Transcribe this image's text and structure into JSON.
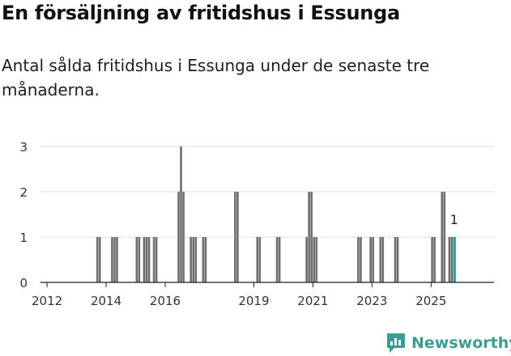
{
  "title": "En försäljning av fritidshus i Essunga",
  "subtitle": "Antal sålda fritidshus i Essunga under de senaste tre månaderna.",
  "brand": {
    "name": "Newsworthy",
    "color": "#3a9e93"
  },
  "colors": {
    "bar": "#6f6e73",
    "highlight": "#27a09a",
    "axis": "#222222",
    "grid": "#dcdcdc"
  },
  "chart_data": {
    "type": "bar",
    "frequency": "monthly",
    "ylabel": "",
    "xlabel": "",
    "ylim": [
      0,
      3
    ],
    "y_ticks": [
      0,
      1,
      2,
      3
    ],
    "x_ticks": [
      "2012",
      "2014",
      "2016",
      "2019",
      "2021",
      "2023",
      "2025"
    ],
    "series": [
      {
        "values": [
          {
            "x": "2013-09",
            "y": 1
          },
          {
            "x": "2013-10",
            "y": 1
          },
          {
            "x": "2014-03",
            "y": 1
          },
          {
            "x": "2014-04",
            "y": 1
          },
          {
            "x": "2014-05",
            "y": 1
          },
          {
            "x": "2015-01",
            "y": 1
          },
          {
            "x": "2015-02",
            "y": 1
          },
          {
            "x": "2015-04",
            "y": 1
          },
          {
            "x": "2015-05",
            "y": 1
          },
          {
            "x": "2015-06",
            "y": 1
          },
          {
            "x": "2015-08",
            "y": 1
          },
          {
            "x": "2015-09",
            "y": 1
          },
          {
            "x": "2016-06",
            "y": 2
          },
          {
            "x": "2016-07",
            "y": 3
          },
          {
            "x": "2016-08",
            "y": 2
          },
          {
            "x": "2016-11",
            "y": 1
          },
          {
            "x": "2016-12",
            "y": 1
          },
          {
            "x": "2017-01",
            "y": 1
          },
          {
            "x": "2017-04",
            "y": 1
          },
          {
            "x": "2017-05",
            "y": 1
          },
          {
            "x": "2018-05",
            "y": 2
          },
          {
            "x": "2018-06",
            "y": 2
          },
          {
            "x": "2019-02",
            "y": 1
          },
          {
            "x": "2019-03",
            "y": 1
          },
          {
            "x": "2019-10",
            "y": 1
          },
          {
            "x": "2019-11",
            "y": 1
          },
          {
            "x": "2020-10",
            "y": 1
          },
          {
            "x": "2020-11",
            "y": 2
          },
          {
            "x": "2020-12",
            "y": 2
          },
          {
            "x": "2021-01",
            "y": 1
          },
          {
            "x": "2021-02",
            "y": 1
          },
          {
            "x": "2022-07",
            "y": 1
          },
          {
            "x": "2022-08",
            "y": 1
          },
          {
            "x": "2022-12",
            "y": 1
          },
          {
            "x": "2023-01",
            "y": 1
          },
          {
            "x": "2023-04",
            "y": 1
          },
          {
            "x": "2023-05",
            "y": 1
          },
          {
            "x": "2023-10",
            "y": 1
          },
          {
            "x": "2023-11",
            "y": 1
          },
          {
            "x": "2025-01",
            "y": 1
          },
          {
            "x": "2025-02",
            "y": 1
          },
          {
            "x": "2025-05",
            "y": 2
          },
          {
            "x": "2025-06",
            "y": 2
          },
          {
            "x": "2025-08",
            "y": 1
          },
          {
            "x": "2025-09",
            "y": 1
          }
        ]
      }
    ],
    "highlight": {
      "x": "2025-10",
      "y": 1
    },
    "annotation": "1",
    "grid": true
  }
}
